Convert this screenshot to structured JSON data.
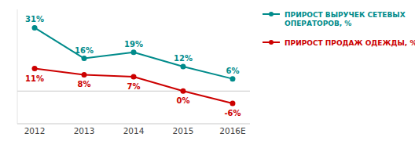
{
  "chart_data": {
    "type": "line",
    "categories": [
      "2012",
      "2013",
      "2014",
      "2015",
      "2016E"
    ],
    "series": [
      {
        "name": "ПРИРОСТ ВЫРУЧЕК СЕТЕВЫХ\nОПЕРАТОРОВ, %",
        "color": "#008B8B",
        "values": [
          31,
          16,
          19,
          12,
          6
        ],
        "value_labels": [
          "31%",
          "16%",
          "19%",
          "12%",
          "6%"
        ]
      },
      {
        "name": "ПРИРОСТ ПРОДАЖ ОДЕЖДЫ, %",
        "color": "#CC0000",
        "values": [
          11,
          8,
          7,
          0,
          -6
        ],
        "value_labels": [
          "11%",
          "8%",
          "7%",
          "0%",
          "-6%"
        ]
      }
    ],
    "ylim": [
      -16,
      40
    ],
    "yticks": [
      0
    ],
    "grid": true,
    "tick_labels": "x",
    "data_labels": true,
    "legend": "right",
    "marker": "circle",
    "line_style": "solid"
  }
}
